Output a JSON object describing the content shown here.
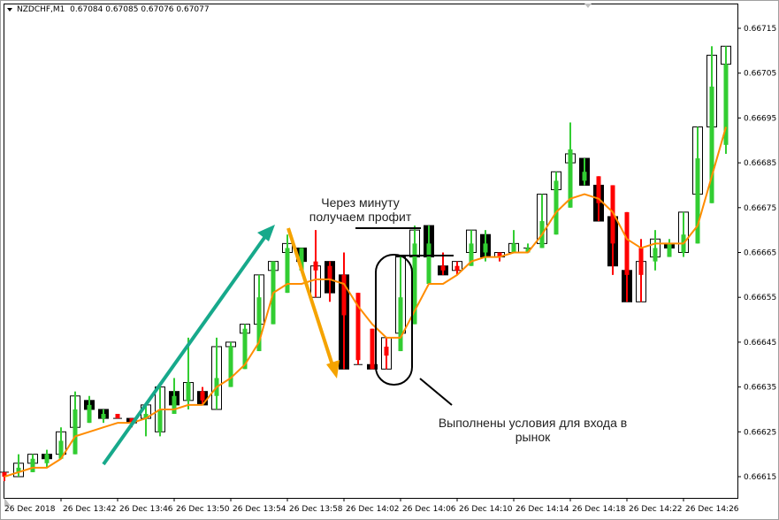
{
  "header": {
    "symbol": "NZDCHF,M1",
    "quote": "0.67084 0.67085 0.67076 0.67077"
  },
  "chart_data": {
    "type": "candlestick",
    "y_axis": {
      "ticks": [
        "0.66715",
        "0.66705",
        "0.66695",
        "0.66685",
        "0.66675",
        "0.66665",
        "0.66655",
        "0.66645",
        "0.66635",
        "0.66625",
        "0.66615"
      ],
      "ylim": [
        0.66609,
        0.66725
      ]
    },
    "x_axis": {
      "ticks": [
        "26 Dec 2018",
        "26 Dec 13:42",
        "26 Dec 13:46",
        "26 Dec 13:50",
        "26 Dec 13:54",
        "26 Dec 13:58",
        "26 Dec 14:02",
        "26 Dec 14:06",
        "26 Dec 14:10",
        "26 Dec 14:14",
        "26 Dec 14:18",
        "26 Dec 14:22",
        "26 Dec 14:26"
      ]
    },
    "grid": false,
    "colors": {
      "up": "#32cd32",
      "down": "#ff0000",
      "ma": "#ff8c00",
      "up_arrow": "#17a98b",
      "down_arrow": "#f5a300"
    },
    "candles": [
      {
        "box": [
          0.66616,
          0.66616
        ],
        "box_fill": "none",
        "hl": [
          0.66616,
          0.66614
        ],
        "body": [
          0.66616,
          0.66615
        ],
        "color": "red"
      },
      {
        "box": [
          0.66618,
          0.66615
        ],
        "box_fill": "white",
        "hl": [
          0.6662,
          0.66615
        ],
        "body": [
          0.66617,
          0.66616
        ],
        "color": "green"
      },
      {
        "box": [
          0.6662,
          0.66618
        ],
        "box_fill": "white",
        "hl": [
          0.6662,
          0.66616
        ],
        "body": [
          0.66619,
          0.66616
        ],
        "color": "green"
      },
      {
        "box": [
          0.6662,
          0.66619
        ],
        "box_fill": "black",
        "hl": [
          0.66621,
          0.66617
        ],
        "body": [
          0.6662,
          0.66618
        ],
        "color": "green"
      },
      {
        "box": [
          0.66625,
          0.6662
        ],
        "box_fill": "white",
        "hl": [
          0.66626,
          0.66619
        ],
        "body": [
          0.66623,
          0.66619
        ],
        "color": "green"
      },
      {
        "box": [
          0.66633,
          0.66626
        ],
        "box_fill": "white",
        "hl": [
          0.66634,
          0.6662
        ],
        "body": [
          0.6663,
          0.6662
        ],
        "color": "green"
      },
      {
        "box": [
          0.66632,
          0.6663
        ],
        "box_fill": "black",
        "hl": [
          0.66633,
          0.66627
        ],
        "body": [
          0.66631,
          0.66627
        ],
        "color": "green"
      },
      {
        "box": [
          0.6663,
          0.66628
        ],
        "box_fill": "black",
        "hl": [
          0.6663,
          0.66627
        ],
        "body": [
          0.66629,
          0.66628
        ],
        "color": "green"
      },
      {
        "box": [
          0.66628,
          0.66628
        ],
        "box_fill": "none",
        "hl": [
          0.66629,
          0.66628
        ],
        "body": [
          0.66629,
          0.66628
        ],
        "color": "red"
      },
      {
        "box": [
          0.66628,
          0.66627
        ],
        "box_fill": "black",
        "hl": [
          0.66628,
          0.66626
        ],
        "body": [
          0.66628,
          0.66627
        ],
        "color": "red"
      },
      {
        "box": [
          0.66631,
          0.66628
        ],
        "box_fill": "white",
        "hl": [
          0.66631,
          0.66624
        ],
        "body": [
          0.66629,
          0.66628
        ],
        "color": "green"
      },
      {
        "box": [
          0.66635,
          0.66625
        ],
        "box_fill": "white",
        "hl": [
          0.66636,
          0.66624
        ],
        "body": [
          0.6663,
          0.66625
        ],
        "color": "green"
      },
      {
        "box": [
          0.66634,
          0.66631
        ],
        "box_fill": "black",
        "hl": [
          0.66637,
          0.66629
        ],
        "body": [
          0.66633,
          0.66629
        ],
        "color": "green"
      },
      {
        "box": [
          0.66636,
          0.66632
        ],
        "box_fill": "white",
        "hl": [
          0.66646,
          0.6663
        ],
        "body": [
          0.66636,
          0.66632
        ],
        "color": "green"
      },
      {
        "box": [
          0.66634,
          0.66631
        ],
        "box_fill": "black",
        "hl": [
          0.66635,
          0.66631
        ],
        "body": [
          0.66634,
          0.66632
        ],
        "color": "red"
      },
      {
        "box": [
          0.66644,
          0.6663
        ],
        "box_fill": "white",
        "hl": [
          0.66646,
          0.6663
        ],
        "body": [
          0.66637,
          0.66633
        ],
        "color": "green"
      },
      {
        "box": [
          0.66645,
          0.66644
        ],
        "box_fill": "white",
        "hl": [
          0.66645,
          0.66635
        ],
        "body": [
          0.66644,
          0.66635
        ],
        "color": "green"
      },
      {
        "box": [
          0.66649,
          0.66647
        ],
        "box_fill": "white",
        "hl": [
          0.66649,
          0.66639
        ],
        "body": [
          0.66648,
          0.66639
        ],
        "color": "green"
      },
      {
        "box": [
          0.6666,
          0.66649
        ],
        "box_fill": "white",
        "hl": [
          0.6666,
          0.66643
        ],
        "body": [
          0.66655,
          0.66643
        ],
        "color": "green"
      },
      {
        "box": [
          0.66663,
          0.66661
        ],
        "box_fill": "white",
        "hl": [
          0.66663,
          0.66649
        ],
        "body": [
          0.66663,
          0.66649
        ],
        "color": "green"
      },
      {
        "box": [
          0.66667,
          0.66665
        ],
        "box_fill": "white",
        "hl": [
          0.66669,
          0.66656
        ],
        "body": [
          0.66666,
          0.66656
        ],
        "color": "green"
      },
      {
        "box": [
          0.66666,
          0.66663
        ],
        "box_fill": "black",
        "hl": [
          0.66666,
          0.66661
        ],
        "body": [
          0.66666,
          0.66661
        ],
        "color": "green"
      },
      {
        "box": [
          0.66662,
          0.66655
        ],
        "box_fill": "white",
        "hl": [
          0.6667,
          0.66655
        ],
        "body": [
          0.66663,
          0.66661
        ],
        "color": "red"
      },
      {
        "box": [
          0.66663,
          0.66656
        ],
        "box_fill": "black",
        "hl": [
          0.66663,
          0.66654
        ],
        "body": [
          0.66662,
          0.66659
        ],
        "color": "red"
      },
      {
        "box": [
          0.6666,
          0.66639
        ],
        "box_fill": "black",
        "hl": [
          0.66665,
          0.66639
        ],
        "body": [
          0.6666,
          0.66651
        ],
        "color": "red"
      },
      {
        "box": [
          0.6664,
          0.6664
        ],
        "box_fill": "none",
        "hl": [
          0.66656,
          0.6664
        ],
        "body": [
          0.66656,
          0.66641
        ],
        "color": "red"
      },
      {
        "box": [
          0.6664,
          0.66639
        ],
        "box_fill": "black",
        "hl": [
          0.66648,
          0.66639
        ],
        "body": [
          0.66648,
          0.66639
        ],
        "color": "red"
      },
      {
        "box": [
          0.66646,
          0.66639
        ],
        "box_fill": "white",
        "hl": [
          0.66646,
          0.66639
        ],
        "body": [
          0.66644,
          0.66642
        ],
        "color": "red"
      },
      {
        "box": [
          0.66664,
          0.66647
        ],
        "box_fill": "white",
        "hl": [
          0.66664,
          0.66643
        ],
        "body": [
          0.66655,
          0.66643
        ],
        "color": "green"
      },
      {
        "box": [
          0.6667,
          0.66664
        ],
        "box_fill": "white",
        "hl": [
          0.66671,
          0.66649
        ],
        "body": [
          0.66667,
          0.66649
        ],
        "color": "green"
      },
      {
        "box": [
          0.66671,
          0.66664
        ],
        "box_fill": "black",
        "hl": [
          0.66671,
          0.66658
        ],
        "body": [
          0.66667,
          0.66658
        ],
        "color": "green"
      },
      {
        "box": [
          0.66662,
          0.6666
        ],
        "box_fill": "black",
        "hl": [
          0.66665,
          0.6666
        ],
        "body": [
          0.66662,
          0.66661
        ],
        "color": "red"
      },
      {
        "box": [
          0.66663,
          0.66661
        ],
        "box_fill": "white",
        "hl": [
          0.66663,
          0.6666
        ],
        "body": [
          0.66662,
          0.66661
        ],
        "color": "red"
      },
      {
        "box": [
          0.6667,
          0.66665
        ],
        "box_fill": "white",
        "hl": [
          0.6667,
          0.66662
        ],
        "body": [
          0.66667,
          0.66662
        ],
        "color": "green"
      },
      {
        "box": [
          0.66669,
          0.66664
        ],
        "box_fill": "black",
        "hl": [
          0.6667,
          0.66663
        ],
        "body": [
          0.66667,
          0.66665
        ],
        "color": "green"
      },
      {
        "box": [
          0.66665,
          0.66664
        ],
        "box_fill": "white",
        "hl": [
          0.66665,
          0.66663
        ],
        "body": [
          0.66665,
          0.66664
        ],
        "color": "red"
      },
      {
        "box": [
          0.66667,
          0.66665
        ],
        "box_fill": "white",
        "hl": [
          0.6667,
          0.66665
        ],
        "body": [
          0.66667,
          0.66665
        ],
        "color": "green"
      },
      {
        "box": [
          0.66666,
          0.66666
        ],
        "box_fill": "none",
        "hl": [
          0.66667,
          0.66665
        ],
        "body": [
          0.66666,
          0.66665
        ],
        "color": "green"
      },
      {
        "box": [
          0.66678,
          0.66667
        ],
        "box_fill": "white",
        "hl": [
          0.66678,
          0.66666
        ],
        "body": [
          0.66672,
          0.66666
        ],
        "color": "green"
      },
      {
        "box": [
          0.66683,
          0.66679
        ],
        "box_fill": "white",
        "hl": [
          0.66683,
          0.66669
        ],
        "body": [
          0.66681,
          0.66669
        ],
        "color": "green"
      },
      {
        "box": [
          0.66687,
          0.66685
        ],
        "box_fill": "white",
        "hl": [
          0.66694,
          0.66675
        ],
        "body": [
          0.66688,
          0.66675
        ],
        "color": "green"
      },
      {
        "box": [
          0.66686,
          0.6668
        ],
        "box_fill": "black",
        "hl": [
          0.66686,
          0.6668
        ],
        "body": [
          0.66683,
          0.66681
        ],
        "color": "green"
      },
      {
        "box": [
          0.6668,
          0.66672
        ],
        "box_fill": "black",
        "hl": [
          0.66682,
          0.66672
        ],
        "body": [
          0.66682,
          0.66676
        ],
        "color": "red"
      },
      {
        "box": [
          0.66673,
          0.66662
        ],
        "box_fill": "black",
        "hl": [
          0.6668,
          0.6666
        ],
        "body": [
          0.6668,
          0.66667
        ],
        "color": "red"
      },
      {
        "box": [
          0.66661,
          0.66654
        ],
        "box_fill": "black",
        "hl": [
          0.66674,
          0.66654
        ],
        "body": [
          0.66674,
          0.6666
        ],
        "color": "red"
      },
      {
        "box": [
          0.66663,
          0.66654
        ],
        "box_fill": "white",
        "hl": [
          0.66668,
          0.66654
        ],
        "body": [
          0.66666,
          0.6666
        ],
        "color": "red"
      },
      {
        "box": [
          0.66668,
          0.66664
        ],
        "box_fill": "white",
        "hl": [
          0.6667,
          0.66661
        ],
        "body": [
          0.66666,
          0.66663
        ],
        "color": "green"
      },
      {
        "box": [
          0.66667,
          0.66666
        ],
        "box_fill": "black",
        "hl": [
          0.66668,
          0.66664
        ],
        "body": [
          0.66667,
          0.66664
        ],
        "color": "green"
      },
      {
        "box": [
          0.66674,
          0.66665
        ],
        "box_fill": "white",
        "hl": [
          0.66674,
          0.66664
        ],
        "body": [
          0.66669,
          0.66665
        ],
        "color": "green"
      },
      {
        "box": [
          0.66693,
          0.66678
        ],
        "box_fill": "white",
        "hl": [
          0.66693,
          0.66667
        ],
        "body": [
          0.66686,
          0.66667
        ],
        "color": "green"
      },
      {
        "box": [
          0.66709,
          0.66693
        ],
        "box_fill": "white",
        "hl": [
          0.66711,
          0.66676
        ],
        "body": [
          0.66702,
          0.66676
        ],
        "color": "green"
      },
      {
        "box": [
          0.66711,
          0.66707
        ],
        "box_fill": "white",
        "hl": [
          0.66711,
          0.66687
        ],
        "body": [
          0.66707,
          0.66689
        ],
        "color": "green"
      }
    ],
    "moving_average": [
      0.66615,
      0.66616,
      0.66617,
      0.66617,
      0.66619,
      0.66624,
      0.66625,
      0.66626,
      0.66627,
      0.66627,
      0.66628,
      0.6663,
      0.6663,
      0.66631,
      0.66631,
      0.66635,
      0.66637,
      0.6664,
      0.66645,
      0.66656,
      0.66658,
      0.66658,
      0.66659,
      0.66659,
      0.66658,
      0.66653,
      0.66649,
      0.66646,
      0.66646,
      0.66652,
      0.66658,
      0.66658,
      0.6666,
      0.66663,
      0.66664,
      0.66664,
      0.66665,
      0.66665,
      0.66669,
      0.66674,
      0.66677,
      0.66678,
      0.66677,
      0.66674,
      0.66668,
      0.66666,
      0.66667,
      0.66667,
      0.66667,
      0.66671,
      0.66682,
      0.66693
    ]
  },
  "annotations": {
    "profit_line1": "Через минуту",
    "profit_line2": "получаем профит",
    "entry_line1": "Выполнены условия для входа в",
    "entry_line2": "рынок"
  }
}
